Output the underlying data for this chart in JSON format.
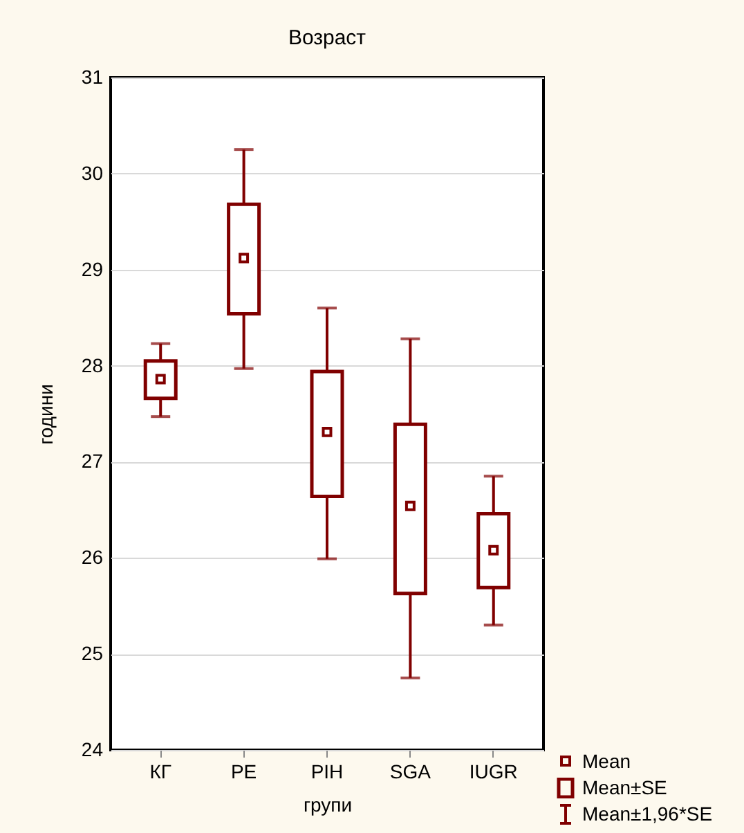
{
  "chart_data": {
    "type": "box",
    "title": "Возраст",
    "xlabel": "групи",
    "ylabel": "години",
    "categories": [
      "КГ",
      "PE",
      "PIH",
      "SGA",
      "IUGR"
    ],
    "series": [
      {
        "color": "#800000",
        "boxes": [
          {
            "low": 27.47,
            "q1": 27.66,
            "median": 27.86,
            "q3": 28.05,
            "high": 28.23
          },
          {
            "low": 27.97,
            "q1": 28.54,
            "median": 29.12,
            "q3": 29.68,
            "high": 30.25
          },
          {
            "low": 25.99,
            "q1": 26.64,
            "median": 27.31,
            "q3": 27.94,
            "high": 28.6
          },
          {
            "low": 24.75,
            "q1": 25.63,
            "median": 26.54,
            "q3": 27.39,
            "high": 28.28
          },
          {
            "low": 25.3,
            "q1": 25.69,
            "median": 26.08,
            "q3": 26.46,
            "high": 26.85
          }
        ]
      }
    ],
    "ylim": [
      24,
      31
    ],
    "yticks": [
      24,
      25,
      26,
      27,
      28,
      29,
      30,
      31
    ],
    "grid": "y",
    "annotations": [
      "Mean",
      "Mean±SE",
      "Mean±1,96*SE"
    ]
  }
}
